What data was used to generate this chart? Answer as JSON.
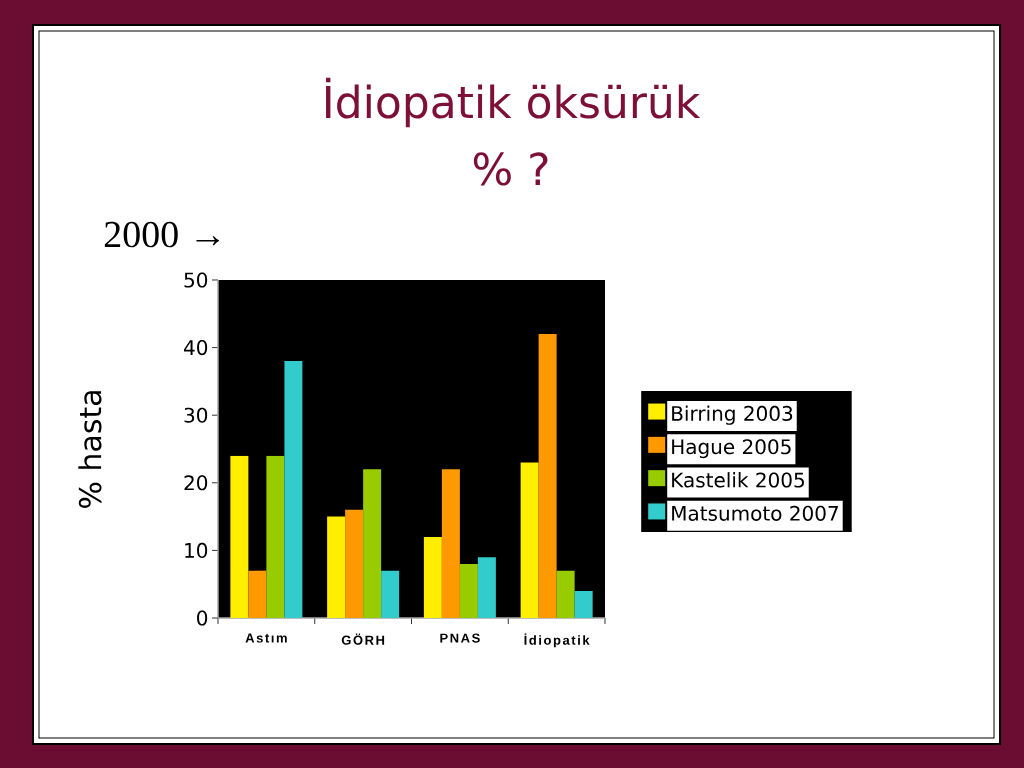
{
  "chart_data": {
    "type": "bar",
    "title": "İdiopatik öksürük",
    "subtitle": "% ?",
    "annotations": [
      "2000 →"
    ],
    "ylabel": "% hasta",
    "categories": [
      "Astım",
      "GÖRH",
      "PNAS",
      "İdiopatik"
    ],
    "series": [
      {
        "name": "Birring 2003",
        "color": "#ffee00",
        "values": [
          24,
          15,
          12,
          23
        ]
      },
      {
        "name": "Hague 2005",
        "color": "#ff9900",
        "values": [
          7,
          16,
          22,
          42
        ]
      },
      {
        "name": "Kastelik 2005",
        "color": "#99cc00",
        "values": [
          24,
          22,
          8,
          7
        ]
      },
      {
        "name": "Matsumoto 2007",
        "color": "#33cccc",
        "values": [
          38,
          7,
          9,
          4
        ]
      }
    ],
    "ylim": [
      0,
      50
    ],
    "yticks": [
      0,
      10,
      20,
      30,
      40,
      50
    ],
    "grid": false,
    "legend": "right"
  }
}
